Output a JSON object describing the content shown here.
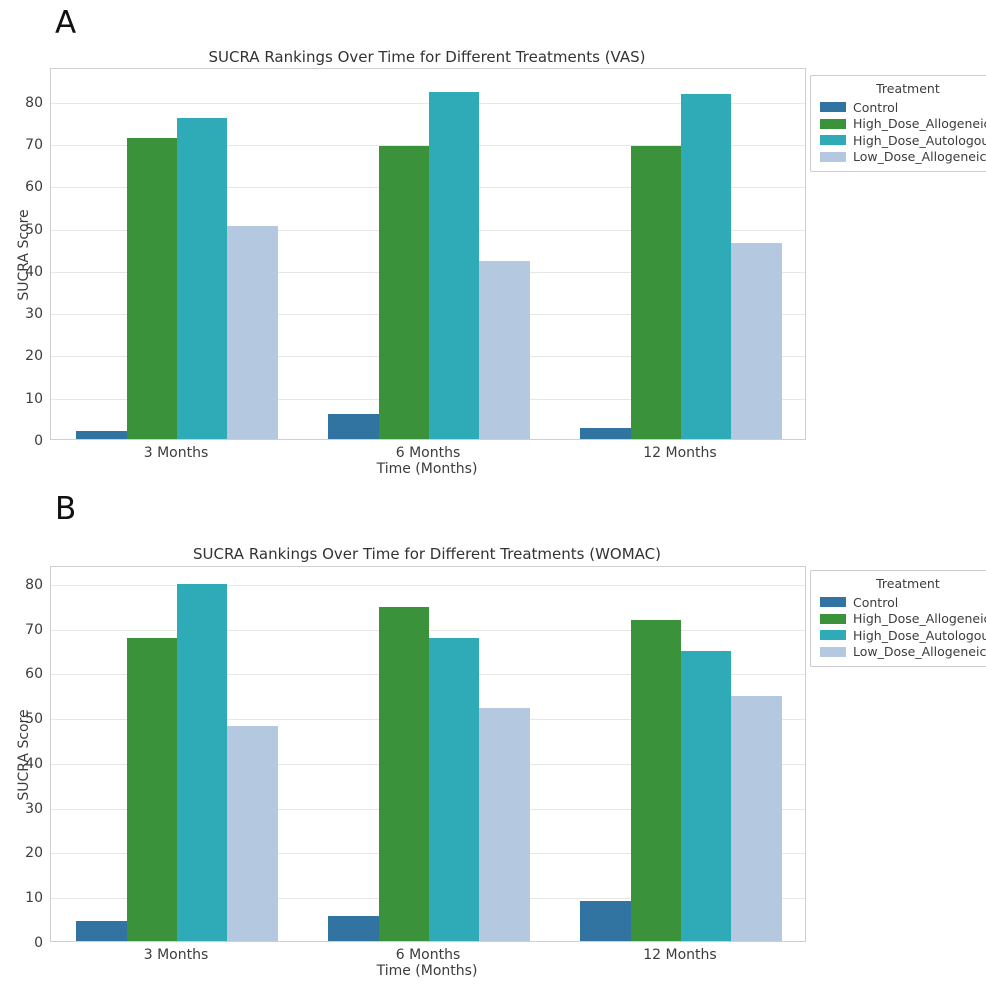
{
  "panel_labels": [
    "A",
    "B"
  ],
  "legend_title": "Treatment",
  "chart_data": [
    {
      "type": "bar",
      "title": "SUCRA Rankings Over Time for Different Treatments (VAS)",
      "xlabel": "Time (Months)",
      "ylabel": "SUCRA Score",
      "categories": [
        "3 Months",
        "6 Months",
        "12 Months"
      ],
      "series": [
        {
          "name": "Control",
          "color": "#3274a1",
          "values": [
            2.0,
            6.0,
            2.5
          ]
        },
        {
          "name": "High_Dose_Allogeneic",
          "color": "#3a923a",
          "values": [
            71.3,
            69.4,
            69.3
          ]
        },
        {
          "name": "High_Dose_Autologous",
          "color": "#2eabb7",
          "values": [
            75.9,
            82.2,
            81.6
          ]
        },
        {
          "name": "Low_Dose_Allogeneic",
          "color": "#b4c8e0",
          "values": [
            50.4,
            42.1,
            46.3
          ]
        }
      ],
      "ylim": [
        0,
        88
      ],
      "yticks": [
        0,
        10,
        20,
        30,
        40,
        50,
        60,
        70,
        80
      ],
      "grid": true,
      "legend_title": "Treatment",
      "legend_position": "upper right outside"
    },
    {
      "type": "bar",
      "title": "SUCRA Rankings Over Time for Different Treatments (WOMAC)",
      "xlabel": "Time (Months)",
      "ylabel": "SUCRA Score",
      "categories": [
        "3 Months",
        "6 Months",
        "12 Months"
      ],
      "series": [
        {
          "name": "Control",
          "color": "#3274a1",
          "values": [
            4.4,
            5.7,
            9.0
          ]
        },
        {
          "name": "High_Dose_Allogeneic",
          "color": "#3a923a",
          "values": [
            67.7,
            74.6,
            71.8
          ]
        },
        {
          "name": "High_Dose_Autologous",
          "color": "#2eabb7",
          "values": [
            79.7,
            67.6,
            64.7
          ]
        },
        {
          "name": "Low_Dose_Allogeneic",
          "color": "#b4c8e0",
          "values": [
            48.0,
            52.0,
            54.8
          ]
        }
      ],
      "ylim": [
        0,
        84
      ],
      "yticks": [
        0,
        10,
        20,
        30,
        40,
        50,
        60,
        70,
        80
      ],
      "grid": true,
      "legend_title": "Treatment",
      "legend_position": "upper right outside"
    }
  ]
}
